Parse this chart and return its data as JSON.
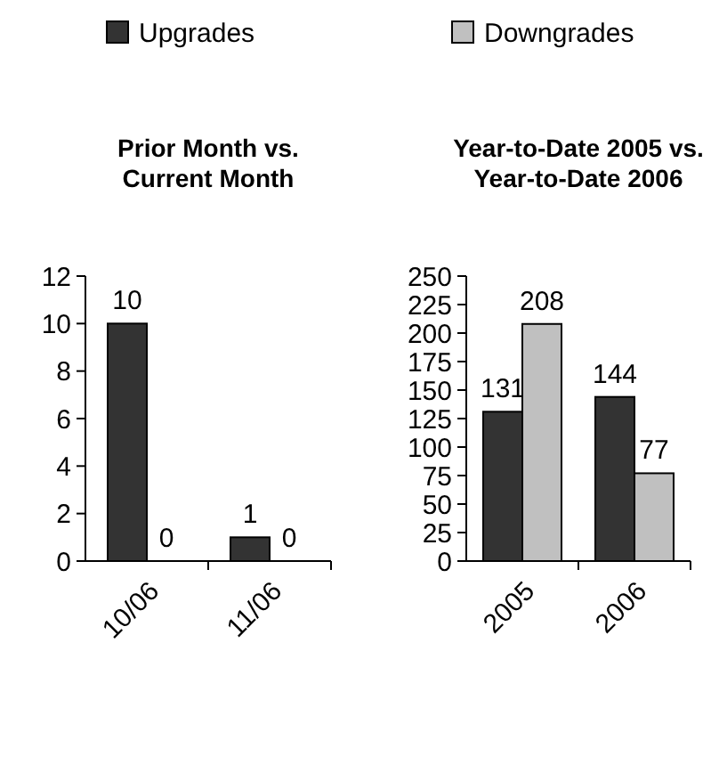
{
  "chart_data": [
    {
      "type": "bar",
      "title": "Prior Month vs.\nCurrent Month",
      "categories": [
        "10/06",
        "11/06"
      ],
      "series": [
        {
          "name": "Upgrades",
          "color": "#333333",
          "values": [
            10,
            1
          ]
        },
        {
          "name": "Downgrades",
          "color": "#c0c0c0",
          "values": [
            0,
            0
          ]
        }
      ],
      "ylim": [
        0,
        12
      ],
      "yticks": [
        0,
        2,
        4,
        6,
        8,
        10,
        12
      ],
      "data_labels": true,
      "legend": "top"
    },
    {
      "type": "bar",
      "title": "Year-to-Date 2005 vs.\nYear-to-Date 2006",
      "categories": [
        "2005",
        "2006"
      ],
      "series": [
        {
          "color": "#333333",
          "values": [
            131,
            144
          ]
        },
        {
          "color": "#c0c0c0",
          "values": [
            208,
            77
          ]
        }
      ],
      "ylim": [
        0,
        250
      ],
      "yticks": [
        0,
        25,
        50,
        75,
        100,
        125,
        150,
        175,
        200,
        225,
        250
      ],
      "data_labels": true
    }
  ]
}
